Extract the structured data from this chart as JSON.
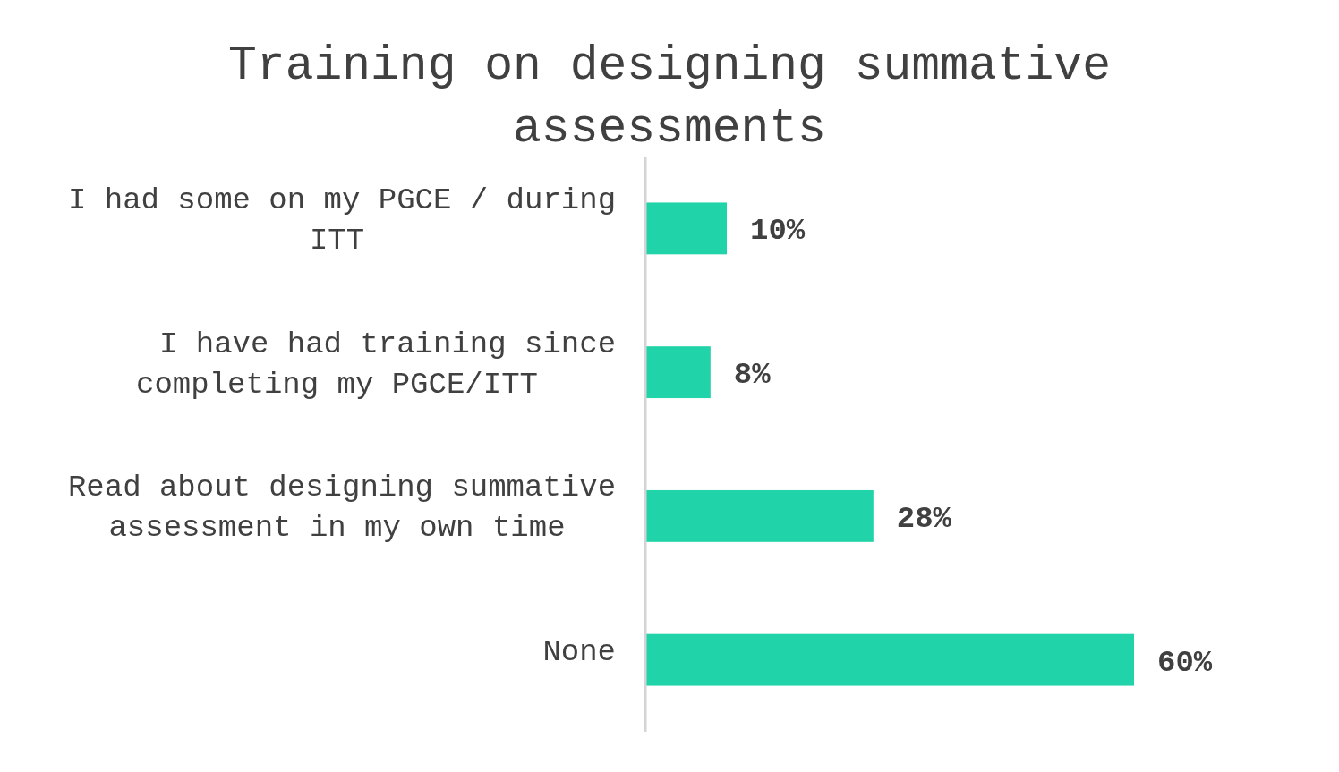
{
  "chart_data": {
    "type": "bar",
    "orientation": "horizontal",
    "title": "Training on designing summative assessments",
    "categories": [
      "I had some on my PGCE / during ITT",
      "I have had training since completing my PGCE/ITT",
      "Read about designing summative assessment in my own time",
      "None"
    ],
    "values": [
      10,
      8,
      28,
      60
    ],
    "value_labels": [
      "10%",
      "8%",
      "28%",
      "60%"
    ],
    "color": "#20d3a8"
  }
}
